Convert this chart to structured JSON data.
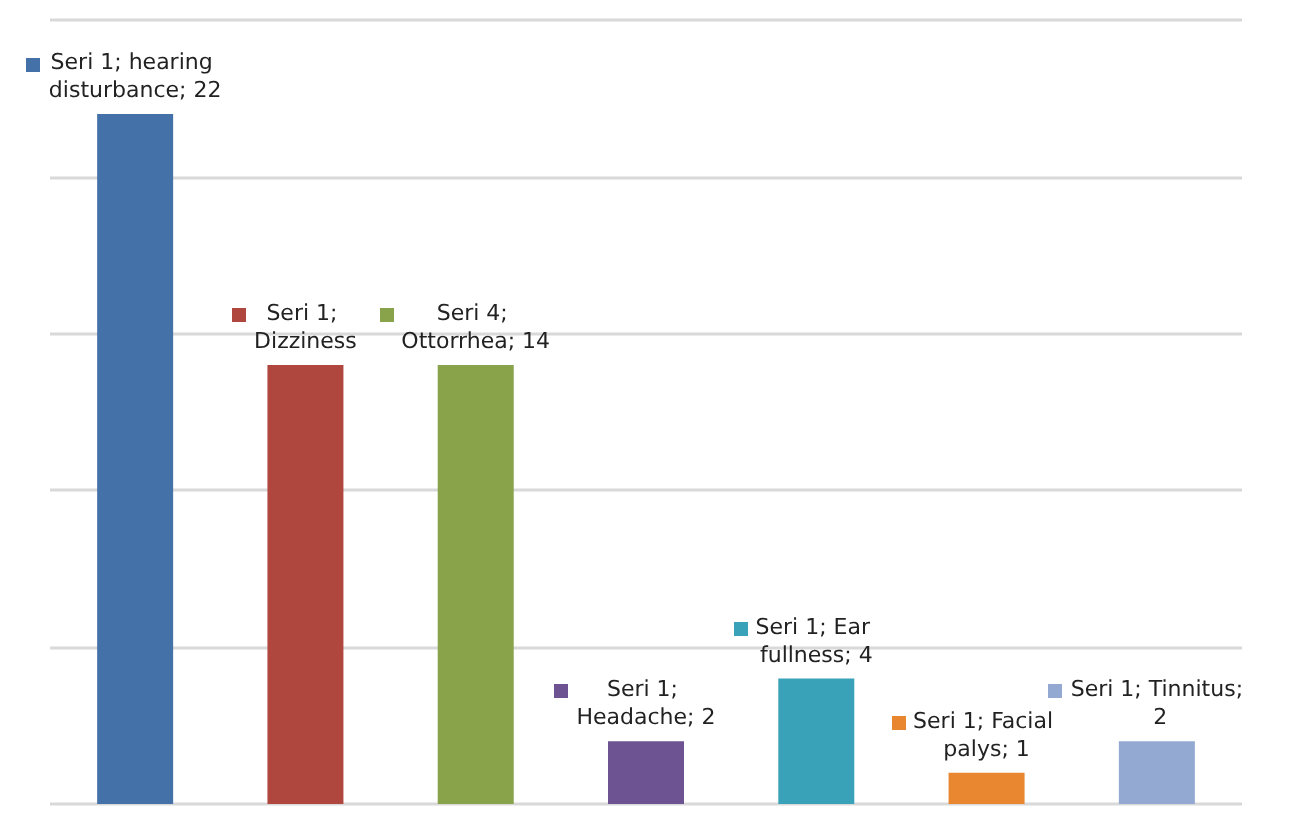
{
  "chart_data": {
    "type": "bar",
    "categories": [
      null,
      null,
      null,
      null,
      null,
      null,
      null
    ],
    "values": [
      22,
      14,
      14,
      2,
      4,
      1,
      2
    ],
    "colors": [
      "#4472a8",
      "#b0473e",
      "#88a34a",
      "#6e5393",
      "#3aa2b8",
      "#e8872f",
      "#93a9d2"
    ],
    "value_labels": [
      "Seri 1; hearing disturbance; 22",
      "Seri 1; Dizziness",
      "Seri 4; Ottorrhea; 14",
      "Seri 1; Headache; 2",
      "Seri 1; Ear fullness; 4",
      "Seri 1; Facial palys; 1",
      "Seri 1; Tinnitus; 2"
    ],
    "ylim": [
      0,
      25
    ],
    "yticks": [
      {
        "value": 0,
        "label": null
      },
      {
        "value": 5,
        "label": null
      },
      {
        "value": 10,
        "label": null
      },
      {
        "value": 15,
        "label": null
      },
      {
        "value": 20,
        "label": null
      },
      {
        "value": 25,
        "label": null
      }
    ],
    "grid": "y"
  }
}
